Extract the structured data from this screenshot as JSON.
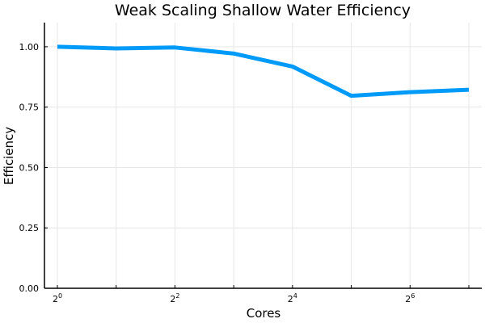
{
  "chart_data": {
    "type": "line",
    "title": "Weak Scaling Shallow Water Efficiency",
    "xlabel": "Cores",
    "ylabel": "Efficiency",
    "x_scale": "log2",
    "x": [
      1,
      2,
      4,
      8,
      16,
      32,
      64,
      128
    ],
    "x_ticks": [
      {
        "base": "2",
        "exp": "0"
      },
      {
        "base": "2",
        "exp": "2"
      },
      {
        "base": "2",
        "exp": "4"
      },
      {
        "base": "2",
        "exp": "6"
      }
    ],
    "y_ticks": [
      "0.00",
      "0.25",
      "0.50",
      "0.75",
      "1.00"
    ],
    "ylim": [
      0,
      1.1
    ],
    "grid": true,
    "legend": "none",
    "series": [
      {
        "values": [
          1.0,
          0.993,
          0.997,
          0.972,
          0.918,
          0.797,
          0.812,
          0.822
        ],
        "color": "#009af9"
      }
    ]
  }
}
